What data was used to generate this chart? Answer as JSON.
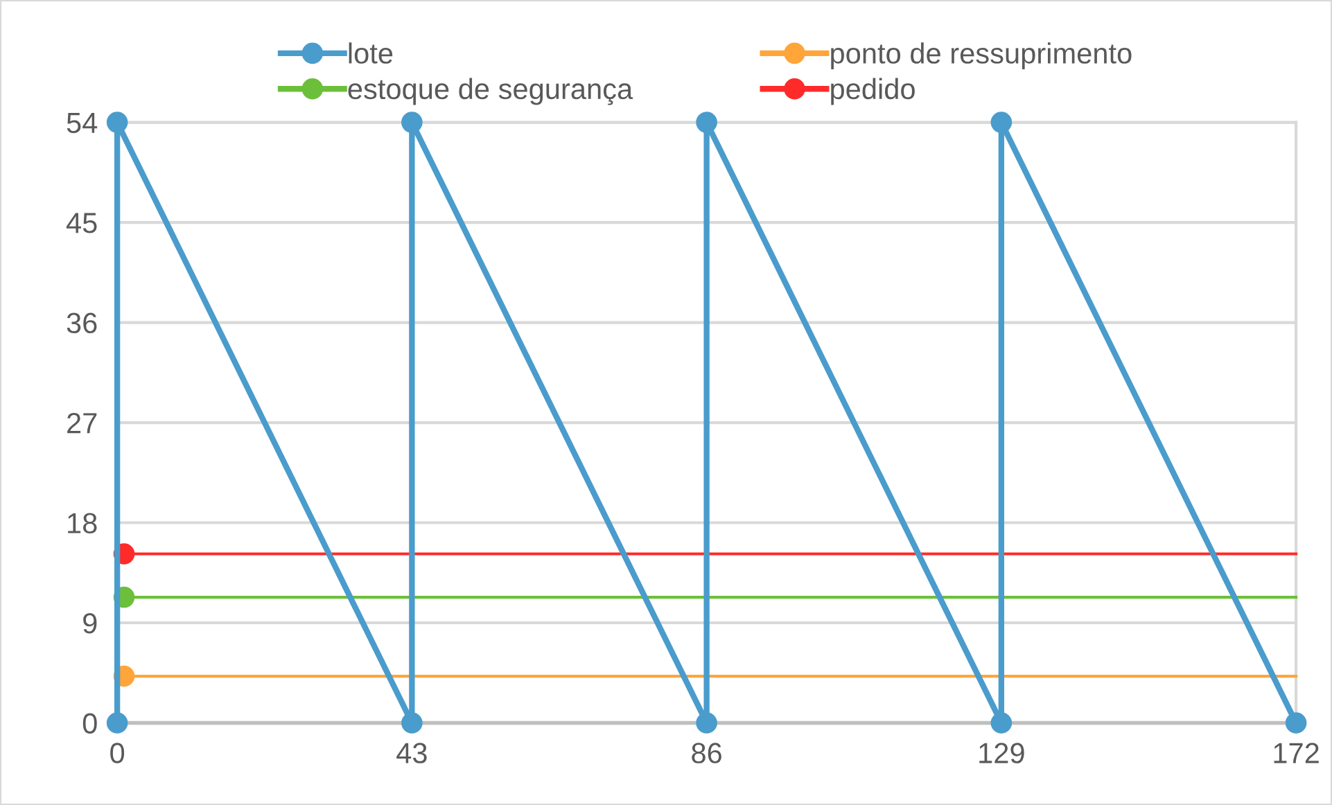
{
  "chart_data": {
    "type": "line",
    "xlim": [
      0,
      172
    ],
    "xticks": [
      0,
      43,
      86,
      129,
      172
    ],
    "ylim": [
      0,
      54
    ],
    "yticks": [
      0,
      9,
      18,
      27,
      36,
      45,
      54
    ],
    "grid": "y",
    "legend": "top",
    "marker": "circle",
    "series": [
      {
        "name": "lote",
        "color": "#4a9ccc",
        "x": [
          0,
          0,
          43,
          43,
          86,
          86,
          129,
          129,
          172
        ],
        "values": [
          0,
          54,
          0,
          54,
          0,
          54,
          0,
          54,
          0
        ]
      },
      {
        "name": "ponto de ressuprimento",
        "color": "#ffa53a",
        "x": [
          1,
          172
        ],
        "values": [
          4.2,
          4.2
        ]
      },
      {
        "name": "estoque de segurança",
        "color": "#6cbf3a",
        "x": [
          1,
          172
        ],
        "values": [
          11.3,
          11.3
        ]
      },
      {
        "name": "pedido",
        "color": "#ff2a2a",
        "x": [
          1,
          172
        ],
        "values": [
          15.2,
          15.2
        ]
      }
    ]
  }
}
